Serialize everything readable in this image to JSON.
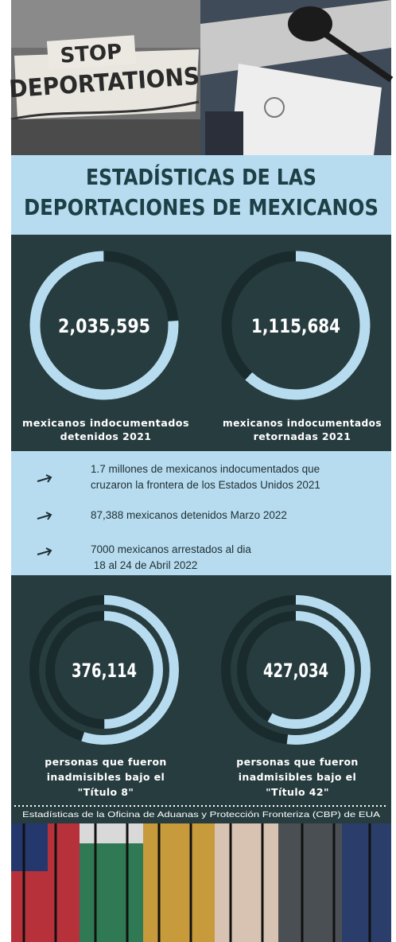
{
  "header": {
    "photo_text_top": "STOP",
    "photo_text_bottom": "DEPORTATIONS"
  },
  "banner": {
    "title_lines": [
      "ESTADÍSTICAS DE LAS",
      "DEPORTACIONES DE MEXICANOS"
    ]
  },
  "stats_top": [
    {
      "value": "2,035,595",
      "caption_lines": [
        "mexicanos indocumentados",
        "detenidos 2021"
      ]
    },
    {
      "value": "1,115,684",
      "caption_lines": [
        "mexicanos indocumentados",
        "retornadas 2021"
      ]
    }
  ],
  "facts": [
    {
      "lines": [
        "1.7 millones de mexicanos indocumentados que",
        "cruzaron la frontera de los Estados Unidos  2021"
      ]
    },
    {
      "lines": [
        "87,388 mexicanos detenidos Marzo 2022"
      ]
    },
    {
      "lines": [
        "7000 mexicanos arrestados  al dia",
        " 18 al 24 de Abril 2022"
      ]
    }
  ],
  "stats_bottom": [
    {
      "value": "376,114",
      "caption_lines": [
        "personas que fueron",
        "inadmisibles bajo el",
        "\"Título 8\""
      ]
    },
    {
      "value": "427,034",
      "caption_lines": [
        "personas que fueron",
        "inadmisibles bajo el",
        "\"Título 42\""
      ]
    }
  ],
  "source": "Estadísticas de la Oficina de Aduanas y Protección Fronteriza (CBP) de EUA"
}
